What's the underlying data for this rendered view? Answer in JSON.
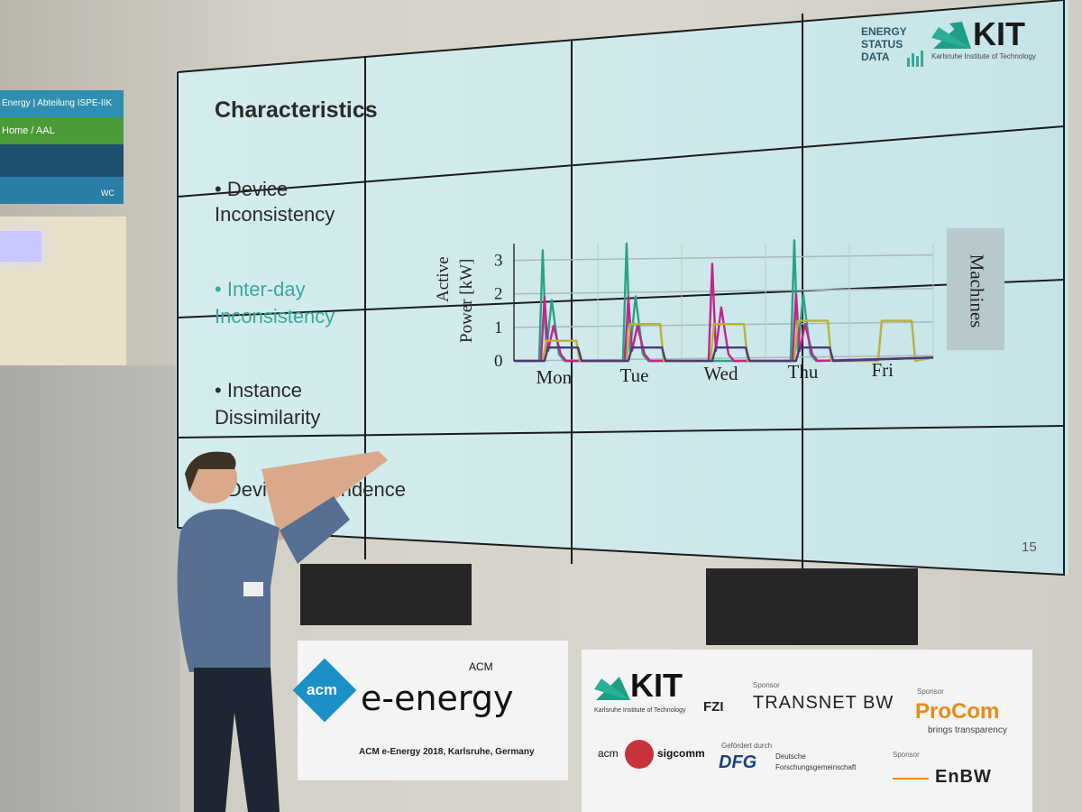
{
  "sign": {
    "lines": [
      "Energy | Abteilung ISPE-IIK",
      "Home / AAL",
      "",
      "WC"
    ],
    "colors": [
      "#2f8fb0",
      "#4a9a38",
      "#1d4f6e",
      "#2a7ea6"
    ]
  },
  "slide": {
    "title": "Characteristics",
    "bullets": [
      {
        "text": "Device Inconsistency",
        "color": "#2b2b2b"
      },
      {
        "text": "Inter-day Inconsistency",
        "color": "#3aa89a"
      },
      {
        "text": "Instance Dissimilarity",
        "color": "#2b2b2b"
      },
      {
        "text": "Device Dependence",
        "color": "#2b2b2b"
      }
    ],
    "page_number": "15",
    "logos": {
      "esd": [
        "ENERGY",
        "STATUS",
        "DATA"
      ],
      "kit": "KIT",
      "kit_subtitle": "Karlsruhe Institute of Technology"
    }
  },
  "chart_data": {
    "type": "line",
    "ylabel": "Active Power [kW]",
    "xlabel": "",
    "categories": [
      "Mon",
      "Tue",
      "Wed",
      "Thu",
      "Fri"
    ],
    "ylim": [
      0,
      3.5
    ],
    "yticks": [
      "0",
      "1",
      "2",
      "3"
    ],
    "side_label": "Machines",
    "series": [
      {
        "color": "#2aa382",
        "peaks": [
          3.3,
          3.5,
          0,
          3.6,
          0
        ]
      },
      {
        "color": "#c2258a",
        "peaks": [
          1.9,
          1.9,
          2.9,
          2.0,
          0
        ]
      },
      {
        "color": "#b9b13a",
        "peaks": [
          0.6,
          1.1,
          1.1,
          1.2,
          1.2
        ]
      },
      {
        "color": "#4a3a7a",
        "peaks": [
          0.4,
          0.4,
          0.4,
          0.4,
          0
        ]
      }
    ]
  },
  "banner_left": {
    "acm": "acm",
    "event_top": "ACM",
    "event": "e-energy",
    "caption": "ACM e-Energy 2018, Karlsruhe, Germany"
  },
  "banner_right": {
    "kit": "KIT",
    "kit_subtitle": "Karlsruhe Institute of Technology",
    "fzi": "FZI",
    "sponsor1_label": "Sponsor",
    "sponsor1": "TRANSNET BW",
    "sponsor2_label": "Sponsor",
    "sponsor2": "ProCom",
    "sponsor2_sub": "brings transparency",
    "acm": "acm",
    "sigcomm": "sigcomm",
    "gefoerdert": "Gefördert durch",
    "dfg": "DFG",
    "dfg_sub1": "Deutsche",
    "dfg_sub2": "Forschungsgemeinschaft",
    "sponsor3_label": "Sponsor",
    "sponsor3": "EnBW"
  }
}
